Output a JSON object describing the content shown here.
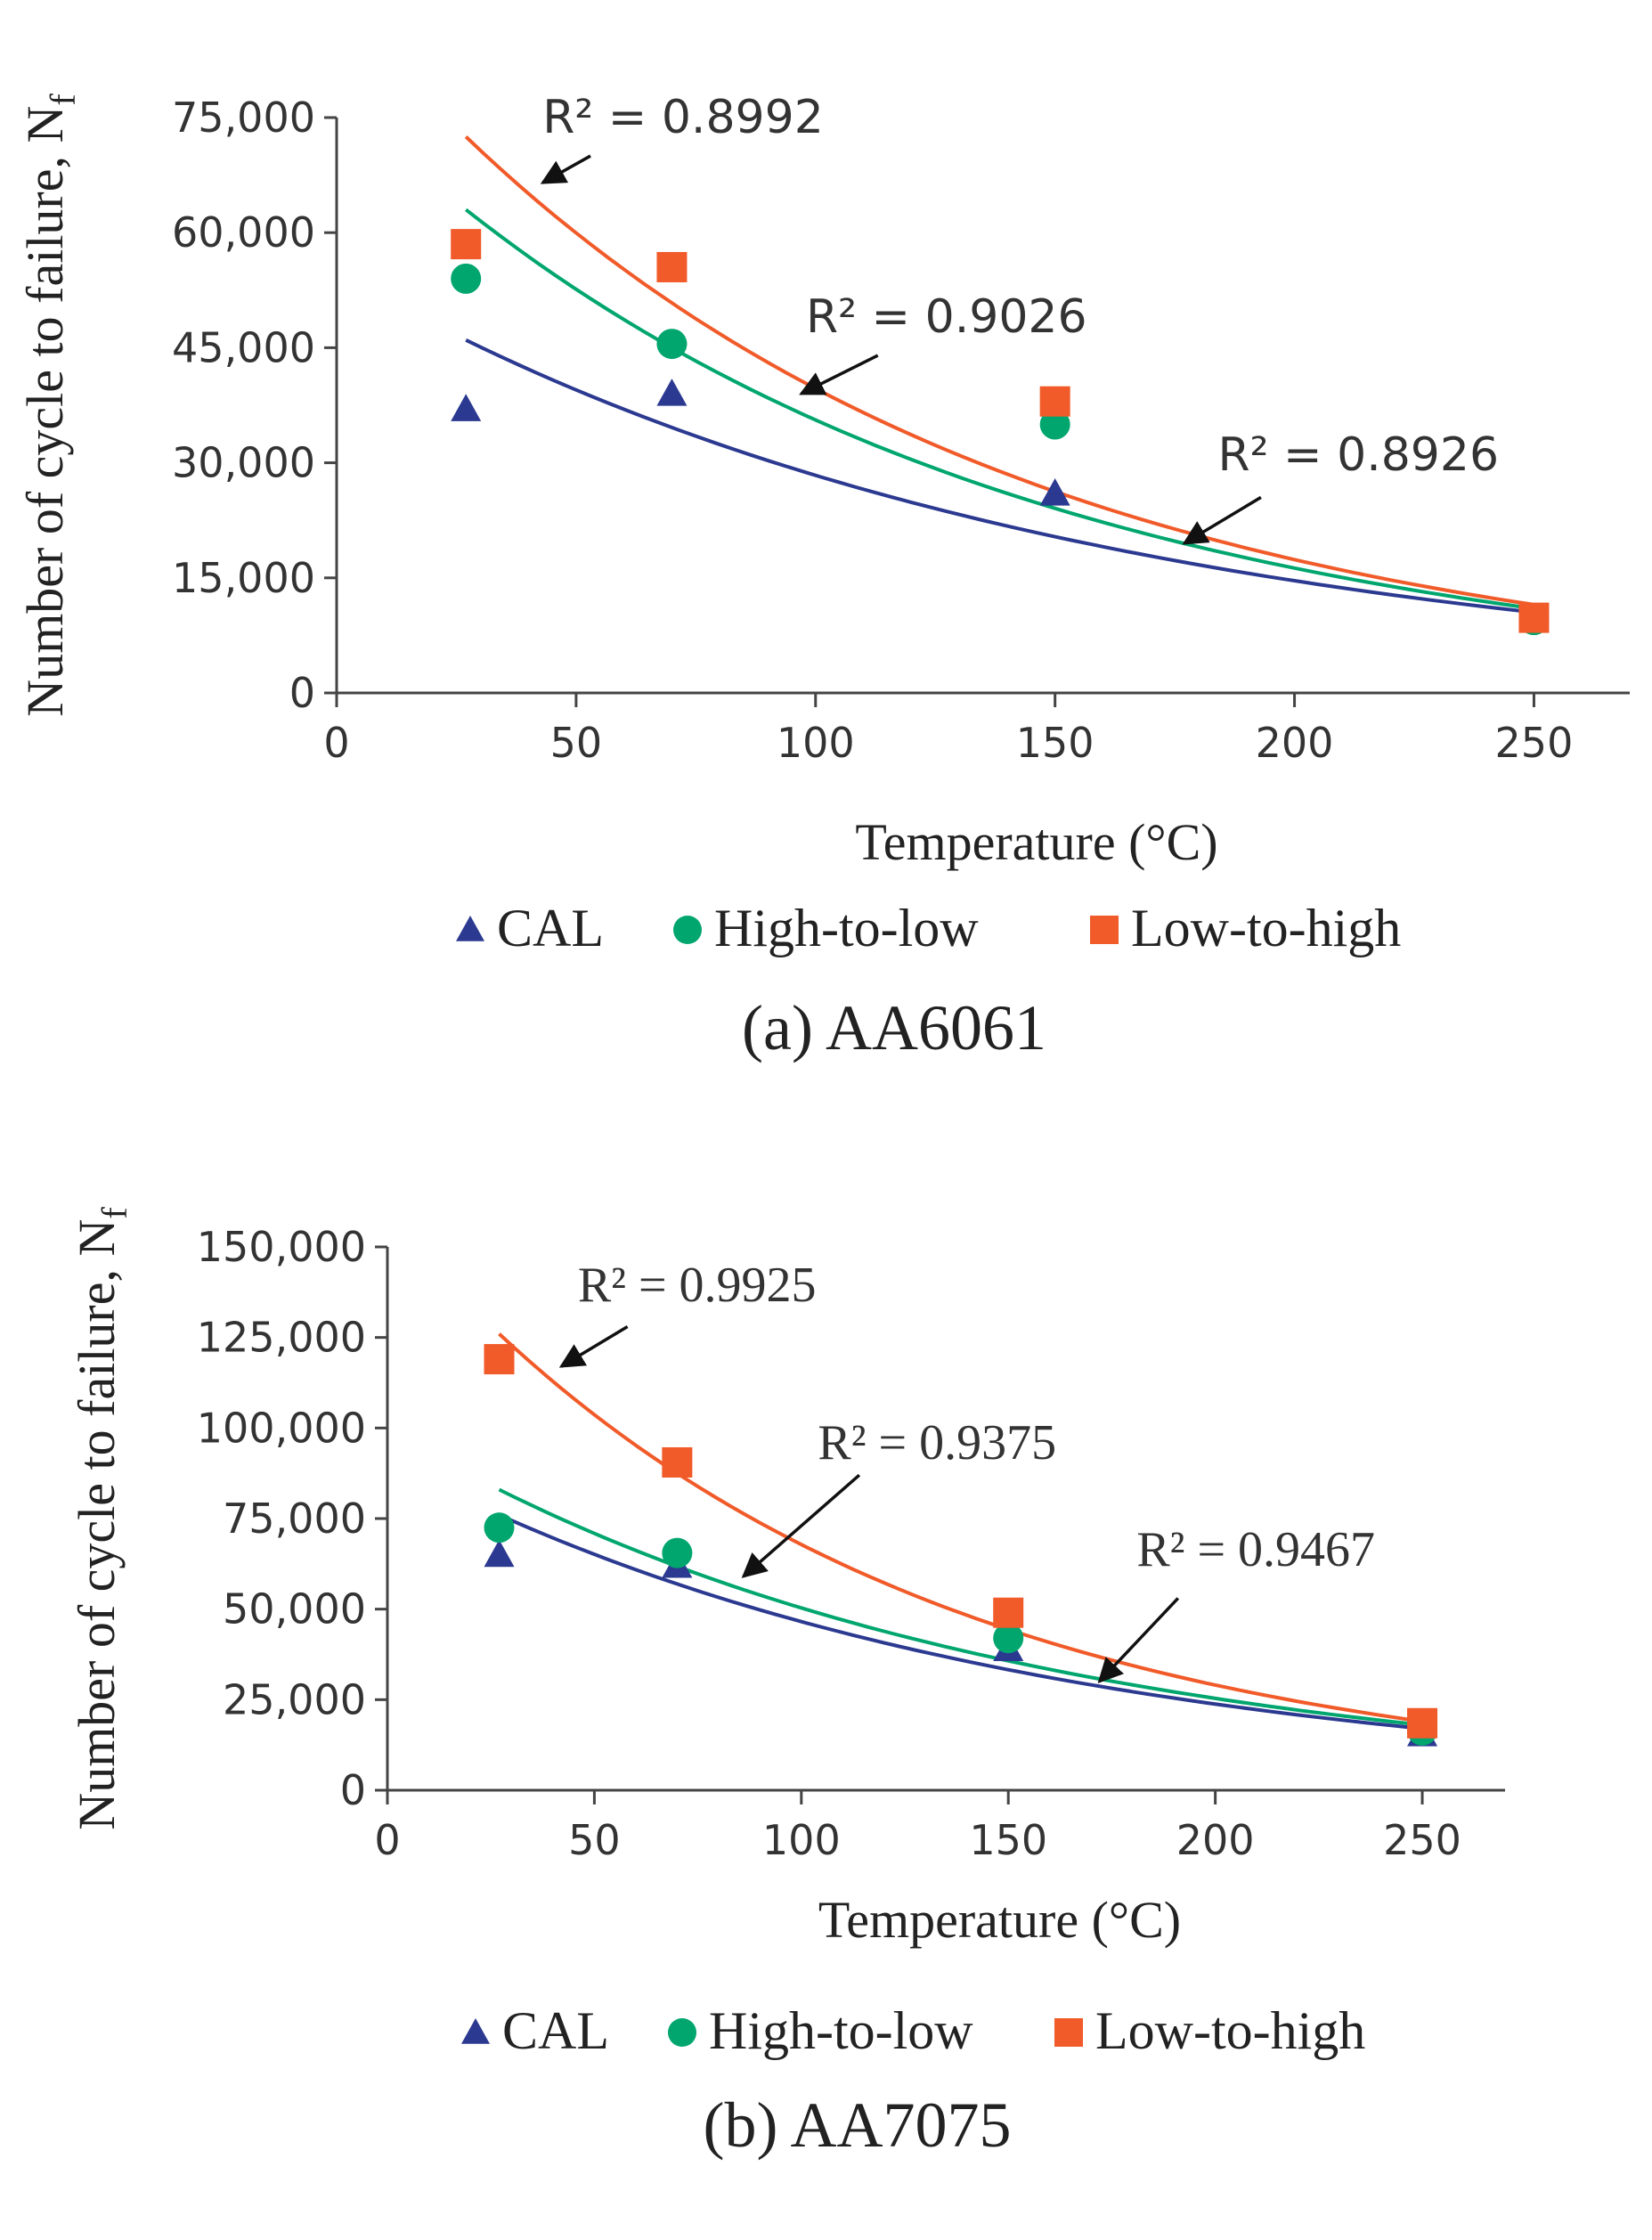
{
  "chart_data": [
    {
      "type": "scatter",
      "caption": "(a)  AA6061",
      "xlabel": "Temperature (°C)",
      "ylabel": "Number of cycle to failure, N",
      "ylabel_sub": "f",
      "xlim": [
        0,
        270
      ],
      "ylim": [
        0,
        75000
      ],
      "xticks": [
        0,
        50,
        100,
        150,
        200,
        250
      ],
      "yticks": [
        0,
        15000,
        30000,
        45000,
        60000,
        75000
      ],
      "xtick_labels": [
        "0",
        "50",
        "100",
        "150",
        "200",
        "250"
      ],
      "ytick_labels": [
        "0",
        "15,000",
        "30,000",
        "45,000",
        "60,000",
        "75,000"
      ],
      "series": [
        {
          "name": "CAL",
          "marker": "triangle",
          "color": "#2b3990",
          "x": [
            27,
            70,
            150,
            250
          ],
          "y": [
            37000,
            39000,
            26000,
            9500
          ],
          "trend": {
            "type": "exponential",
            "from": 27,
            "to": 250,
            "y_start": 46000,
            "y_end": 10500
          }
        },
        {
          "name": "High-to-low",
          "marker": "circle",
          "color": "#00a66e",
          "x": [
            27,
            70,
            150,
            250
          ],
          "y": [
            54000,
            45500,
            35000,
            9500
          ],
          "trend": {
            "type": "exponential",
            "from": 27,
            "to": 250,
            "y_start": 63000,
            "y_end": 11000
          }
        },
        {
          "name": "Low-to-high",
          "marker": "square",
          "color": "#f15a29",
          "x": [
            27,
            70,
            150,
            250
          ],
          "y": [
            58500,
            55500,
            38000,
            9800
          ],
          "trend": {
            "type": "exponential",
            "from": 27,
            "to": 250,
            "y_start": 72500,
            "y_end": 11500
          }
        }
      ],
      "annotations": [
        {
          "text": "R² = 0.8992",
          "tx": 43,
          "ty": 73000,
          "ax": 43,
          "ay": 66500,
          "bx": 53,
          "by": 70000
        },
        {
          "text": "R² = 0.9026",
          "tx": 98,
          "ty": 47000,
          "ax": 97,
          "ay": 39000,
          "bx": 113,
          "by": 44000
        },
        {
          "text": "R² = 0.8926",
          "tx": 184,
          "ty": 29000,
          "ax": 177,
          "ay": 19500,
          "bx": 193,
          "by": 25500
        }
      ]
    },
    {
      "type": "scatter",
      "caption": "(b) AA7075",
      "xlabel": "Temperature (°C)",
      "ylabel": "Number of cycle to failure, N",
      "ylabel_sub": "f",
      "xlim": [
        0,
        270
      ],
      "ylim": [
        0,
        150000
      ],
      "xticks": [
        0,
        50,
        100,
        150,
        200,
        250
      ],
      "yticks": [
        0,
        25000,
        50000,
        75000,
        100000,
        125000,
        150000
      ],
      "xtick_labels": [
        "0",
        "50",
        "100",
        "150",
        "200",
        "250"
      ],
      "ytick_labels": [
        "0",
        "25,000",
        "50,000",
        "75,000",
        "100,000",
        "125,000",
        "150,000"
      ],
      "series": [
        {
          "name": "CAL",
          "marker": "triangle",
          "color": "#2b3990",
          "x": [
            27,
            70,
            150,
            250
          ],
          "y": [
            65000,
            62000,
            39000,
            15500
          ],
          "trend": {
            "type": "exponential",
            "from": 27,
            "to": 250,
            "y_start": 76000,
            "y_end": 17000
          }
        },
        {
          "name": "High-to-low",
          "marker": "circle",
          "color": "#00a66e",
          "x": [
            27,
            70,
            150,
            250
          ],
          "y": [
            72500,
            65500,
            42000,
            16500
          ],
          "trend": {
            "type": "exponential",
            "from": 27,
            "to": 250,
            "y_start": 83000,
            "y_end": 18000
          }
        },
        {
          "name": "Low-to-high",
          "marker": "square",
          "color": "#f15a29",
          "x": [
            27,
            70,
            150,
            250
          ],
          "y": [
            119000,
            90500,
            49000,
            18500
          ],
          "trend": {
            "type": "exponential",
            "from": 27,
            "to": 250,
            "y_start": 126000,
            "y_end": 19000
          }
        }
      ],
      "annotations": [
        {
          "text": "R² = 0.9925",
          "tx": 46,
          "ty": 135000,
          "ax": 42,
          "ay": 117000,
          "bx": 58,
          "by": 128000
        },
        {
          "text": "R² = 0.9375",
          "tx": 104,
          "ty": 91500,
          "ax": 86,
          "ay": 59000,
          "bx": 114,
          "by": 87000
        },
        {
          "text": "R² = 0.9467",
          "tx": 181,
          "ty": 62000,
          "ax": 172,
          "ay": 30000,
          "bx": 191,
          "by": 53000
        }
      ]
    }
  ]
}
